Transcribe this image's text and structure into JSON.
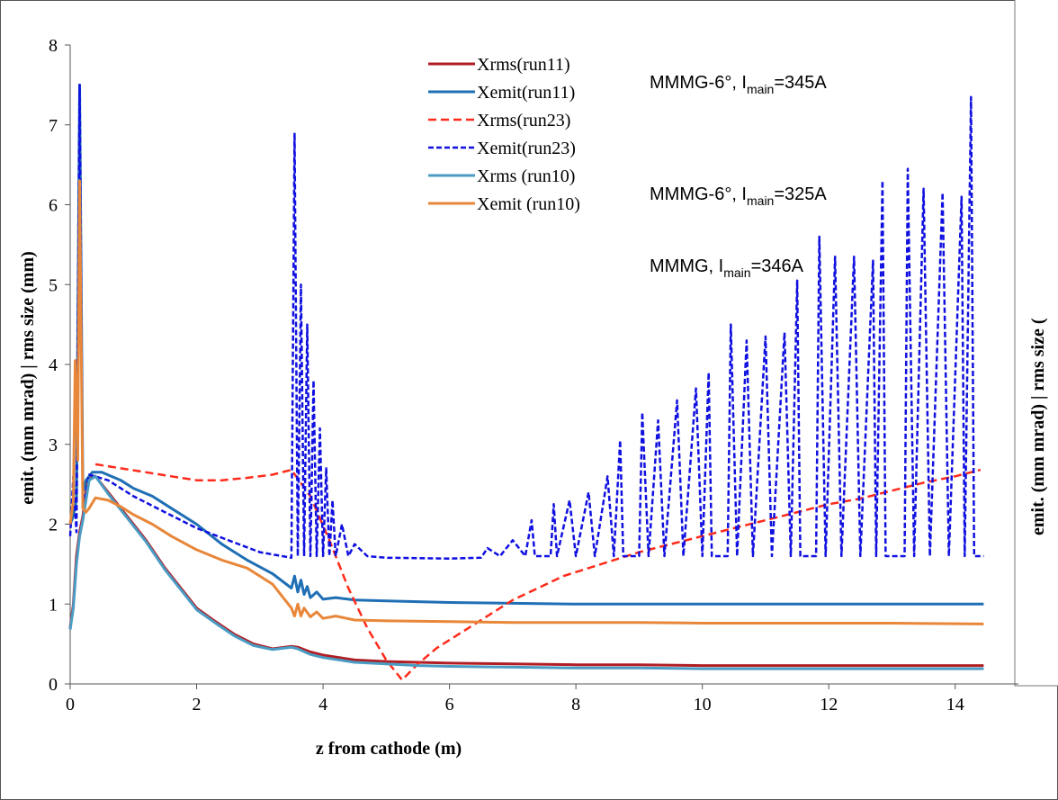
{
  "chart_data": {
    "type": "line",
    "xlabel": "z from cathode (m)",
    "ylabel": "emit. (mm mrad) | rms size (mm)",
    "second_ylabel": "emit. (mm mrad) | rms size (",
    "xlim": [
      0,
      15
    ],
    "ylim": [
      0,
      8
    ],
    "xticks": [
      "0",
      "2",
      "4",
      "6",
      "8",
      "10",
      "12",
      "14"
    ],
    "yticks": [
      "0",
      "1",
      "2",
      "3",
      "4",
      "5",
      "6",
      "7",
      "8"
    ],
    "grid": false,
    "legend_position": "top-center",
    "annotations": [
      {
        "pre": "MMMG-6°, I",
        "sub": "main",
        "post": "=345A"
      },
      {
        "pre": "MMMG-6°, I",
        "sub": "main",
        "post": "=325A"
      },
      {
        "pre": "MMMG, I",
        "sub": "main",
        "post": "=346A"
      }
    ],
    "series": [
      {
        "name": "Xrms(run11)",
        "color": "#B01E24",
        "dash": "solid",
        "points": [
          [
            0,
            0.7
          ],
          [
            0.05,
            1.0
          ],
          [
            0.1,
            1.6
          ],
          [
            0.15,
            1.9
          ],
          [
            0.2,
            2.1
          ],
          [
            0.25,
            2.4
          ],
          [
            0.3,
            2.6
          ],
          [
            0.4,
            2.6
          ],
          [
            0.6,
            2.4
          ],
          [
            0.8,
            2.2
          ],
          [
            1.0,
            2.0
          ],
          [
            1.2,
            1.8
          ],
          [
            1.5,
            1.45
          ],
          [
            1.8,
            1.15
          ],
          [
            2.0,
            0.95
          ],
          [
            2.3,
            0.78
          ],
          [
            2.6,
            0.62
          ],
          [
            2.9,
            0.5
          ],
          [
            3.2,
            0.44
          ],
          [
            3.5,
            0.47
          ],
          [
            3.6,
            0.46
          ],
          [
            3.8,
            0.4
          ],
          [
            4.0,
            0.36
          ],
          [
            4.5,
            0.3
          ],
          [
            5.0,
            0.28
          ],
          [
            5.5,
            0.27
          ],
          [
            6.0,
            0.26
          ],
          [
            7.0,
            0.25
          ],
          [
            8.0,
            0.24
          ],
          [
            9.0,
            0.24
          ],
          [
            10.0,
            0.23
          ],
          [
            11.0,
            0.23
          ],
          [
            12.0,
            0.23
          ],
          [
            13.0,
            0.23
          ],
          [
            14.45,
            0.23
          ]
        ]
      },
      {
        "name": "Xemit(run11)",
        "color": "#1F6FB5",
        "dash": "solid",
        "points": [
          [
            0,
            2.0
          ],
          [
            0.05,
            2.1
          ],
          [
            0.1,
            2.3
          ],
          [
            0.15,
            7.5
          ],
          [
            0.2,
            2.4
          ],
          [
            0.25,
            2.55
          ],
          [
            0.35,
            2.65
          ],
          [
            0.5,
            2.65
          ],
          [
            0.8,
            2.55
          ],
          [
            1.0,
            2.45
          ],
          [
            1.3,
            2.35
          ],
          [
            1.6,
            2.2
          ],
          [
            2.0,
            2.0
          ],
          [
            2.4,
            1.75
          ],
          [
            2.8,
            1.55
          ],
          [
            3.2,
            1.38
          ],
          [
            3.5,
            1.2
          ],
          [
            3.55,
            1.35
          ],
          [
            3.6,
            1.15
          ],
          [
            3.65,
            1.3
          ],
          [
            3.7,
            1.12
          ],
          [
            3.75,
            1.22
          ],
          [
            3.8,
            1.08
          ],
          [
            3.9,
            1.15
          ],
          [
            4.0,
            1.06
          ],
          [
            4.2,
            1.08
          ],
          [
            4.5,
            1.05
          ],
          [
            5.0,
            1.04
          ],
          [
            6.0,
            1.02
          ],
          [
            7.0,
            1.01
          ],
          [
            8.0,
            1.0
          ],
          [
            9.0,
            1.0
          ],
          [
            10.0,
            1.0
          ],
          [
            11.0,
            1.0
          ],
          [
            12.0,
            1.0
          ],
          [
            13.0,
            1.0
          ],
          [
            14.45,
            1.0
          ]
        ]
      },
      {
        "name": "Xrms(run23)",
        "color": "#FF2A1A",
        "dash": "dashed",
        "points": [
          [
            0.4,
            2.75
          ],
          [
            0.8,
            2.7
          ],
          [
            1.2,
            2.65
          ],
          [
            1.6,
            2.6
          ],
          [
            2.0,
            2.55
          ],
          [
            2.4,
            2.55
          ],
          [
            2.8,
            2.58
          ],
          [
            3.2,
            2.62
          ],
          [
            3.5,
            2.68
          ],
          [
            3.8,
            2.35
          ],
          [
            4.1,
            1.8
          ],
          [
            4.4,
            1.2
          ],
          [
            4.7,
            0.7
          ],
          [
            5.0,
            0.3
          ],
          [
            5.25,
            0.05
          ],
          [
            5.5,
            0.25
          ],
          [
            5.8,
            0.45
          ],
          [
            6.2,
            0.65
          ],
          [
            6.6,
            0.85
          ],
          [
            7.0,
            1.05
          ],
          [
            7.4,
            1.2
          ],
          [
            7.8,
            1.35
          ],
          [
            8.2,
            1.45
          ],
          [
            8.6,
            1.55
          ],
          [
            9.0,
            1.65
          ],
          [
            9.5,
            1.75
          ],
          [
            10.0,
            1.85
          ],
          [
            10.5,
            1.95
          ],
          [
            11.0,
            2.05
          ],
          [
            11.5,
            2.15
          ],
          [
            12.0,
            2.25
          ],
          [
            12.5,
            2.32
          ],
          [
            13.0,
            2.42
          ],
          [
            13.5,
            2.52
          ],
          [
            14.0,
            2.6
          ],
          [
            14.4,
            2.68
          ]
        ]
      },
      {
        "name": "Xemit(run23)",
        "color": "#1010E0",
        "dash": "dashed",
        "points": [
          [
            0,
            1.85
          ],
          [
            0.05,
            2.6
          ],
          [
            0.1,
            1.9
          ],
          [
            0.15,
            7.5
          ],
          [
            0.2,
            2.2
          ],
          [
            0.3,
            2.62
          ],
          [
            0.6,
            2.55
          ],
          [
            1.0,
            2.35
          ],
          [
            1.5,
            2.15
          ],
          [
            2.0,
            1.95
          ],
          [
            2.5,
            1.8
          ],
          [
            3.0,
            1.65
          ],
          [
            3.5,
            1.58
          ],
          [
            3.55,
            6.9
          ],
          [
            3.6,
            1.6
          ],
          [
            3.65,
            5.0
          ],
          [
            3.7,
            1.6
          ],
          [
            3.75,
            4.5
          ],
          [
            3.8,
            1.6
          ],
          [
            3.85,
            3.8
          ],
          [
            3.9,
            1.6
          ],
          [
            3.95,
            3.2
          ],
          [
            4.0,
            1.6
          ],
          [
            4.05,
            2.7
          ],
          [
            4.1,
            1.6
          ],
          [
            4.15,
            2.3
          ],
          [
            4.2,
            1.6
          ],
          [
            4.3,
            2.0
          ],
          [
            4.4,
            1.6
          ],
          [
            4.5,
            1.75
          ],
          [
            4.7,
            1.6
          ],
          [
            5.0,
            1.58
          ],
          [
            6.0,
            1.57
          ],
          [
            6.5,
            1.58
          ],
          [
            6.6,
            1.7
          ],
          [
            6.8,
            1.6
          ],
          [
            7.0,
            1.8
          ],
          [
            7.2,
            1.6
          ],
          [
            7.3,
            2.05
          ],
          [
            7.35,
            1.6
          ],
          [
            7.6,
            1.6
          ],
          [
            7.65,
            2.25
          ],
          [
            7.7,
            1.6
          ],
          [
            7.9,
            2.3
          ],
          [
            8.0,
            1.6
          ],
          [
            8.2,
            2.4
          ],
          [
            8.3,
            1.6
          ],
          [
            8.5,
            2.6
          ],
          [
            8.6,
            1.6
          ],
          [
            8.7,
            3.05
          ],
          [
            8.75,
            1.6
          ],
          [
            9.0,
            1.6
          ],
          [
            9.05,
            3.4
          ],
          [
            9.15,
            1.6
          ],
          [
            9.3,
            3.3
          ],
          [
            9.4,
            1.6
          ],
          [
            9.6,
            3.55
          ],
          [
            9.7,
            1.6
          ],
          [
            9.9,
            3.7
          ],
          [
            10.0,
            1.6
          ],
          [
            10.1,
            3.9
          ],
          [
            10.15,
            1.6
          ],
          [
            10.4,
            1.6
          ],
          [
            10.45,
            4.5
          ],
          [
            10.55,
            1.6
          ],
          [
            10.7,
            4.3
          ],
          [
            10.8,
            1.6
          ],
          [
            11.0,
            4.35
          ],
          [
            11.1,
            1.6
          ],
          [
            11.3,
            4.4
          ],
          [
            11.4,
            1.6
          ],
          [
            11.5,
            5.05
          ],
          [
            11.55,
            1.6
          ],
          [
            11.8,
            1.6
          ],
          [
            11.85,
            5.6
          ],
          [
            11.95,
            1.6
          ],
          [
            12.1,
            5.35
          ],
          [
            12.2,
            1.6
          ],
          [
            12.4,
            5.35
          ],
          [
            12.5,
            1.6
          ],
          [
            12.7,
            5.3
          ],
          [
            12.75,
            1.6
          ],
          [
            12.85,
            6.3
          ],
          [
            12.9,
            1.6
          ],
          [
            13.2,
            1.6
          ],
          [
            13.25,
            6.45
          ],
          [
            13.35,
            1.6
          ],
          [
            13.5,
            6.2
          ],
          [
            13.6,
            1.6
          ],
          [
            13.8,
            6.15
          ],
          [
            13.9,
            1.6
          ],
          [
            14.1,
            6.1
          ],
          [
            14.15,
            1.6
          ],
          [
            14.25,
            7.35
          ],
          [
            14.3,
            1.6
          ],
          [
            14.45,
            1.6
          ]
        ]
      },
      {
        "name": "Xrms (run10)",
        "color": "#4A9CC4",
        "dash": "solid",
        "points": [
          [
            0,
            0.68
          ],
          [
            0.05,
            0.95
          ],
          [
            0.1,
            1.5
          ],
          [
            0.15,
            1.85
          ],
          [
            0.2,
            2.05
          ],
          [
            0.25,
            2.3
          ],
          [
            0.3,
            2.55
          ],
          [
            0.4,
            2.6
          ],
          [
            0.6,
            2.38
          ],
          [
            0.8,
            2.18
          ],
          [
            1.0,
            1.98
          ],
          [
            1.2,
            1.78
          ],
          [
            1.5,
            1.43
          ],
          [
            1.8,
            1.13
          ],
          [
            2.0,
            0.93
          ],
          [
            2.3,
            0.76
          ],
          [
            2.6,
            0.6
          ],
          [
            2.9,
            0.48
          ],
          [
            3.2,
            0.43
          ],
          [
            3.5,
            0.46
          ],
          [
            3.6,
            0.44
          ],
          [
            3.8,
            0.37
          ],
          [
            4.0,
            0.33
          ],
          [
            4.5,
            0.27
          ],
          [
            5.0,
            0.25
          ],
          [
            5.5,
            0.23
          ],
          [
            6.0,
            0.22
          ],
          [
            7.0,
            0.21
          ],
          [
            8.0,
            0.2
          ],
          [
            9.0,
            0.2
          ],
          [
            10.0,
            0.19
          ],
          [
            11.0,
            0.19
          ],
          [
            12.0,
            0.19
          ],
          [
            13.0,
            0.19
          ],
          [
            14.45,
            0.19
          ]
        ]
      },
      {
        "name": "Xemit (run10)",
        "color": "#E8873A",
        "dash": "solid",
        "points": [
          [
            0,
            2.0
          ],
          [
            0.05,
            2.3
          ],
          [
            0.08,
            4.05
          ],
          [
            0.12,
            2.8
          ],
          [
            0.15,
            6.3
          ],
          [
            0.2,
            2.2
          ],
          [
            0.25,
            2.15
          ],
          [
            0.3,
            2.2
          ],
          [
            0.4,
            2.33
          ],
          [
            0.6,
            2.3
          ],
          [
            0.8,
            2.22
          ],
          [
            1.0,
            2.12
          ],
          [
            1.3,
            2.0
          ],
          [
            1.6,
            1.85
          ],
          [
            2.0,
            1.68
          ],
          [
            2.4,
            1.55
          ],
          [
            2.8,
            1.45
          ],
          [
            3.2,
            1.25
          ],
          [
            3.5,
            0.95
          ],
          [
            3.55,
            0.85
          ],
          [
            3.6,
            1.0
          ],
          [
            3.65,
            0.85
          ],
          [
            3.7,
            0.95
          ],
          [
            3.8,
            0.84
          ],
          [
            3.9,
            0.9
          ],
          [
            4.0,
            0.82
          ],
          [
            4.2,
            0.85
          ],
          [
            4.5,
            0.8
          ],
          [
            5.0,
            0.79
          ],
          [
            6.0,
            0.78
          ],
          [
            7.0,
            0.77
          ],
          [
            8.0,
            0.77
          ],
          [
            9.0,
            0.77
          ],
          [
            10.0,
            0.76
          ],
          [
            11.0,
            0.76
          ],
          [
            12.0,
            0.76
          ],
          [
            13.0,
            0.76
          ],
          [
            14.45,
            0.75
          ]
        ]
      }
    ]
  }
}
